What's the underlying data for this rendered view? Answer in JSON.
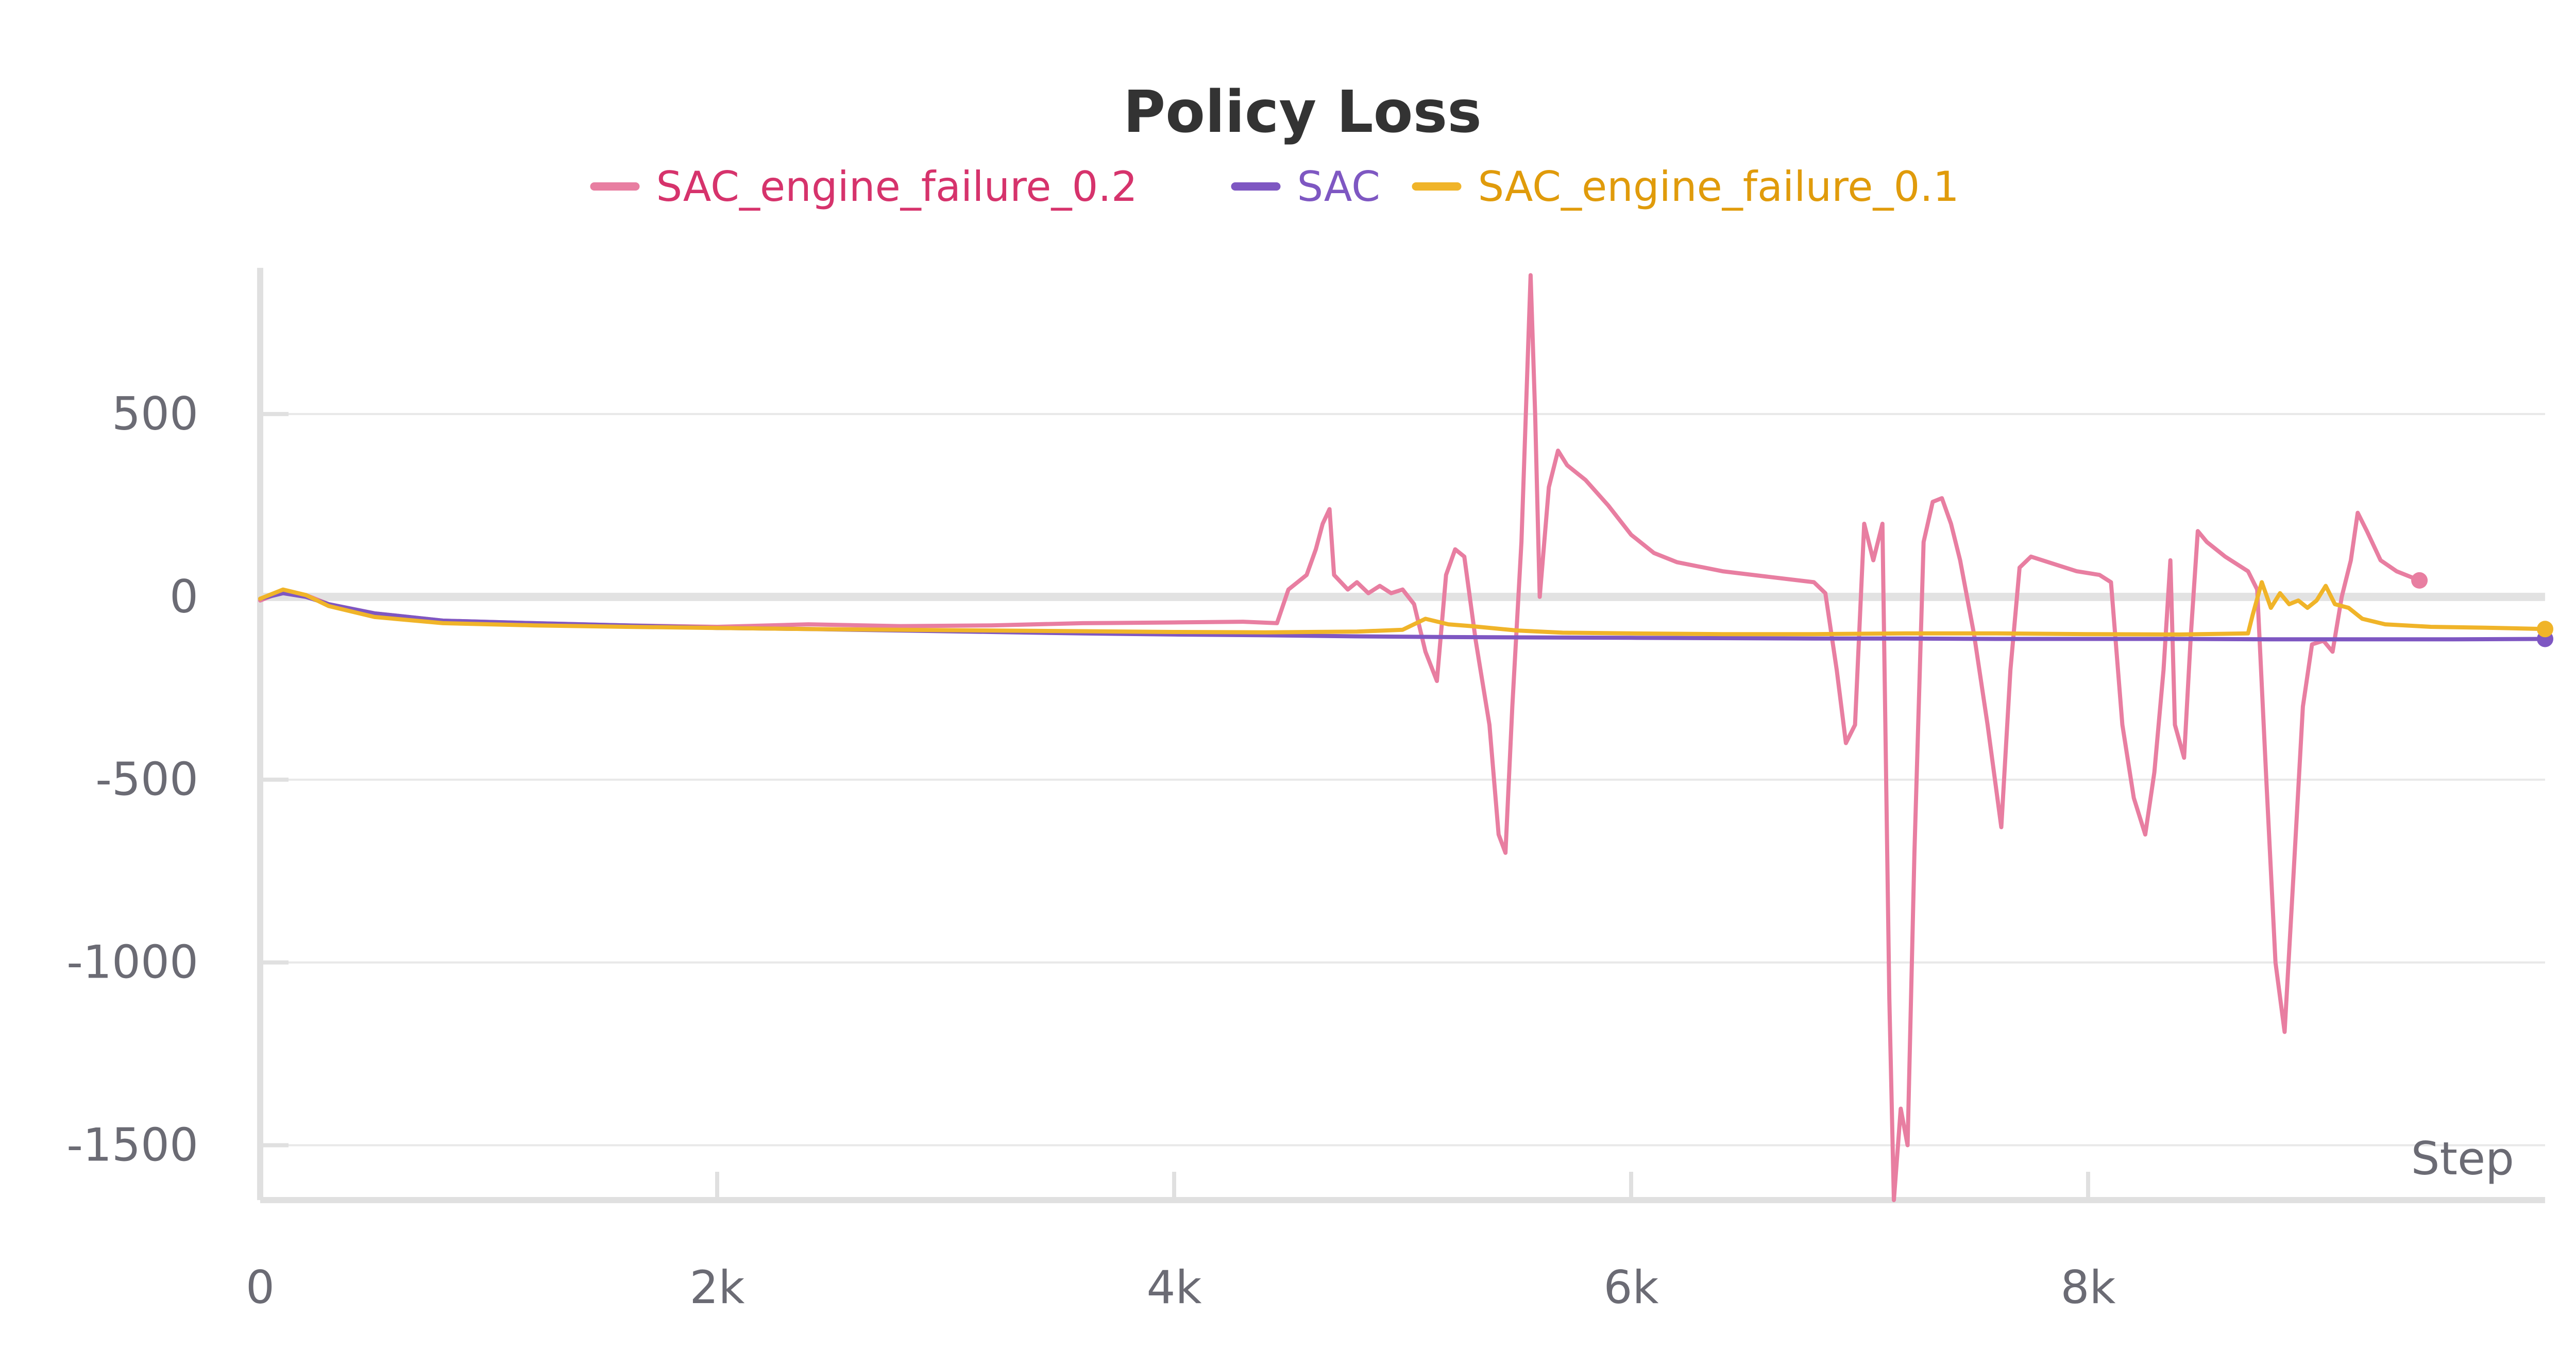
{
  "chart_data": {
    "type": "line",
    "title": "Policy Loss",
    "xlabel": "Step",
    "ylabel": "",
    "xlim": [
      0,
      10000
    ],
    "ylim": [
      -1650,
      900
    ],
    "x_ticks": [
      {
        "value": 0,
        "label": "0"
      },
      {
        "value": 2000,
        "label": "2k"
      },
      {
        "value": 4000,
        "label": "4k"
      },
      {
        "value": 6000,
        "label": "6k"
      },
      {
        "value": 8000,
        "label": "8k"
      }
    ],
    "y_ticks": [
      {
        "value": 500,
        "label": "500"
      },
      {
        "value": 0,
        "label": "0"
      },
      {
        "value": -500,
        "label": "-500"
      },
      {
        "value": -1000,
        "label": "-1000"
      },
      {
        "value": -1500,
        "label": "-1500"
      }
    ],
    "grid": true,
    "legend_position": "top-center",
    "series": [
      {
        "name": "SAC_engine_failure_0.2",
        "color": "#e87ea1",
        "legend_text_color": "#d6336c",
        "end_marker": true,
        "points": [
          [
            0,
            -10
          ],
          [
            100,
            15
          ],
          [
            200,
            5
          ],
          [
            300,
            -20
          ],
          [
            500,
            -45
          ],
          [
            800,
            -65
          ],
          [
            1200,
            -72
          ],
          [
            1600,
            -78
          ],
          [
            2000,
            -82
          ],
          [
            2400,
            -75
          ],
          [
            2800,
            -80
          ],
          [
            3200,
            -78
          ],
          [
            3600,
            -72
          ],
          [
            4000,
            -70
          ],
          [
            4300,
            -68
          ],
          [
            4450,
            -72
          ],
          [
            4500,
            20
          ],
          [
            4580,
            60
          ],
          [
            4620,
            130
          ],
          [
            4650,
            200
          ],
          [
            4680,
            240
          ],
          [
            4700,
            60
          ],
          [
            4760,
            20
          ],
          [
            4800,
            40
          ],
          [
            4850,
            10
          ],
          [
            4900,
            30
          ],
          [
            4950,
            10
          ],
          [
            5000,
            20
          ],
          [
            5050,
            -20
          ],
          [
            5100,
            -150
          ],
          [
            5150,
            -230
          ],
          [
            5190,
            60
          ],
          [
            5230,
            130
          ],
          [
            5270,
            110
          ],
          [
            5320,
            -120
          ],
          [
            5380,
            -350
          ],
          [
            5420,
            -650
          ],
          [
            5450,
            -700
          ],
          [
            5480,
            -300
          ],
          [
            5520,
            150
          ],
          [
            5560,
            880
          ],
          [
            5580,
            500
          ],
          [
            5600,
            0
          ],
          [
            5640,
            300
          ],
          [
            5680,
            400
          ],
          [
            5720,
            360
          ],
          [
            5800,
            320
          ],
          [
            5900,
            250
          ],
          [
            6000,
            170
          ],
          [
            6100,
            120
          ],
          [
            6200,
            95
          ],
          [
            6400,
            70
          ],
          [
            6600,
            55
          ],
          [
            6800,
            40
          ],
          [
            6850,
            10
          ],
          [
            6900,
            -200
          ],
          [
            6940,
            -400
          ],
          [
            6980,
            -350
          ],
          [
            7020,
            200
          ],
          [
            7060,
            100
          ],
          [
            7100,
            200
          ],
          [
            7130,
            -1100
          ],
          [
            7150,
            -1650
          ],
          [
            7180,
            -1400
          ],
          [
            7210,
            -1500
          ],
          [
            7240,
            -700
          ],
          [
            7280,
            150
          ],
          [
            7320,
            260
          ],
          [
            7360,
            270
          ],
          [
            7400,
            200
          ],
          [
            7440,
            100
          ],
          [
            7500,
            -100
          ],
          [
            7560,
            -350
          ],
          [
            7620,
            -630
          ],
          [
            7660,
            -200
          ],
          [
            7700,
            80
          ],
          [
            7750,
            110
          ],
          [
            7850,
            90
          ],
          [
            7950,
            70
          ],
          [
            8050,
            60
          ],
          [
            8100,
            40
          ],
          [
            8150,
            -350
          ],
          [
            8200,
            -550
          ],
          [
            8250,
            -650
          ],
          [
            8290,
            -480
          ],
          [
            8330,
            -200
          ],
          [
            8360,
            100
          ],
          [
            8380,
            -350
          ],
          [
            8420,
            -440
          ],
          [
            8450,
            -100
          ],
          [
            8480,
            180
          ],
          [
            8520,
            150
          ],
          [
            8600,
            110
          ],
          [
            8700,
            70
          ],
          [
            8740,
            20
          ],
          [
            8780,
            -500
          ],
          [
            8820,
            -1000
          ],
          [
            8860,
            -1190
          ],
          [
            8900,
            -750
          ],
          [
            8940,
            -300
          ],
          [
            8980,
            -130
          ],
          [
            9030,
            -120
          ],
          [
            9070,
            -150
          ],
          [
            9110,
            0
          ],
          [
            9150,
            100
          ],
          [
            9180,
            230
          ],
          [
            9220,
            180
          ],
          [
            9280,
            100
          ],
          [
            9350,
            70
          ],
          [
            9450,
            45
          ]
        ]
      },
      {
        "name": "SAC",
        "color": "#7e57c2",
        "legend_text_color": "#7e57c2",
        "end_marker": true,
        "points": [
          [
            0,
            -5
          ],
          [
            100,
            10
          ],
          [
            200,
            0
          ],
          [
            300,
            -20
          ],
          [
            500,
            -45
          ],
          [
            800,
            -65
          ],
          [
            1200,
            -72
          ],
          [
            1600,
            -78
          ],
          [
            2000,
            -85
          ],
          [
            2400,
            -88
          ],
          [
            2800,
            -92
          ],
          [
            3200,
            -96
          ],
          [
            3600,
            -100
          ],
          [
            4000,
            -103
          ],
          [
            4400,
            -105
          ],
          [
            4800,
            -108
          ],
          [
            5200,
            -110
          ],
          [
            5600,
            -111
          ],
          [
            6000,
            -112
          ],
          [
            6400,
            -113
          ],
          [
            6800,
            -114
          ],
          [
            7200,
            -114
          ],
          [
            7600,
            -115
          ],
          [
            8000,
            -115
          ],
          [
            8400,
            -115
          ],
          [
            8800,
            -116
          ],
          [
            9200,
            -116
          ],
          [
            9600,
            -116
          ],
          [
            10000,
            -115
          ]
        ]
      },
      {
        "name": "SAC_engine_failure_0.1",
        "color": "#f0b429",
        "legend_text_color": "#e09b0b",
        "end_marker": true,
        "points": [
          [
            0,
            -5
          ],
          [
            100,
            20
          ],
          [
            200,
            5
          ],
          [
            300,
            -25
          ],
          [
            500,
            -55
          ],
          [
            800,
            -72
          ],
          [
            1200,
            -78
          ],
          [
            1600,
            -82
          ],
          [
            2000,
            -85
          ],
          [
            2400,
            -88
          ],
          [
            2800,
            -90
          ],
          [
            3200,
            -92
          ],
          [
            3600,
            -94
          ],
          [
            4000,
            -96
          ],
          [
            4400,
            -97
          ],
          [
            4800,
            -95
          ],
          [
            5000,
            -90
          ],
          [
            5100,
            -60
          ],
          [
            5200,
            -75
          ],
          [
            5300,
            -80
          ],
          [
            5500,
            -92
          ],
          [
            5700,
            -98
          ],
          [
            6000,
            -100
          ],
          [
            6400,
            -102
          ],
          [
            6800,
            -102
          ],
          [
            7200,
            -100
          ],
          [
            7600,
            -100
          ],
          [
            8000,
            -102
          ],
          [
            8400,
            -103
          ],
          [
            8700,
            -100
          ],
          [
            8720,
            -50
          ],
          [
            8760,
            40
          ],
          [
            8800,
            -30
          ],
          [
            8840,
            10
          ],
          [
            8880,
            -20
          ],
          [
            8920,
            -10
          ],
          [
            8960,
            -30
          ],
          [
            9000,
            -10
          ],
          [
            9040,
            30
          ],
          [
            9080,
            -20
          ],
          [
            9140,
            -30
          ],
          [
            9200,
            -60
          ],
          [
            9300,
            -75
          ],
          [
            9500,
            -82
          ],
          [
            9800,
            -85
          ],
          [
            10000,
            -88
          ]
        ]
      }
    ]
  }
}
